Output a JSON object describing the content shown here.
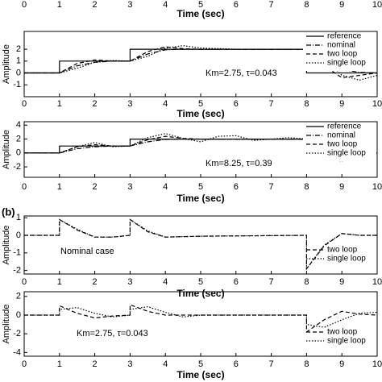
{
  "chart_data": [
    {
      "type": "axis",
      "xlim": [
        0,
        10
      ],
      "xticks": [
        0,
        1,
        2,
        3,
        4,
        5,
        6,
        7,
        8,
        9,
        10
      ],
      "xlabel": "Time (sec)"
    },
    {
      "type": "line",
      "ylabel": "Amplitude",
      "xlabel": "Time (sec)",
      "annotation": "Km=2.75, τ=0.043",
      "xlim": [
        0,
        10
      ],
      "xticks": [
        0,
        1,
        2,
        3,
        4,
        5,
        6,
        7,
        8,
        9,
        10
      ],
      "ylim": [
        -2,
        3.5
      ],
      "yticks": [
        -1,
        0,
        1,
        2
      ],
      "legend": "upper right",
      "series": [
        {
          "name": "reference",
          "color": "#000",
          "dash": "solid",
          "x": [
            0,
            1,
            1,
            3,
            3,
            8,
            8,
            10
          ],
          "values": [
            0,
            0,
            1,
            1,
            2,
            2,
            0,
            0
          ]
        },
        {
          "name": "nominal",
          "color": "#000",
          "dash": "dashdot",
          "x": [
            0,
            1,
            1.5,
            2,
            2.5,
            3,
            3.5,
            4,
            4.5,
            5,
            6,
            7,
            8,
            8.5,
            9,
            9.5,
            10
          ],
          "values": [
            0,
            0,
            0.6,
            0.9,
            1,
            1,
            1.6,
            1.95,
            2,
            2,
            2,
            2,
            2,
            1,
            0.3,
            0.05,
            0
          ]
        },
        {
          "name": "two loop",
          "color": "#000",
          "dash": "dashed",
          "x": [
            0,
            1,
            1.5,
            2,
            2.5,
            3,
            3.5,
            4,
            4.5,
            5,
            6,
            7,
            8,
            8.5,
            9,
            9.5,
            10
          ],
          "values": [
            0,
            0,
            0.8,
            1.1,
            1,
            1,
            1.8,
            2.2,
            2.05,
            2,
            2,
            2,
            2,
            0.6,
            -0.4,
            -0.2,
            0
          ]
        },
        {
          "name": "single loop",
          "color": "#000",
          "dash": "dotted",
          "x": [
            0,
            1,
            1.5,
            2,
            2.5,
            3,
            3.5,
            4,
            4.5,
            5,
            6,
            7,
            8,
            8.5,
            9,
            9.5,
            10
          ],
          "values": [
            0,
            0,
            0.4,
            0.9,
            1.05,
            1,
            1.4,
            2.1,
            2.3,
            2.1,
            2,
            2,
            2,
            1.3,
            -0.2,
            -0.6,
            -0.2
          ]
        }
      ]
    },
    {
      "type": "line",
      "ylabel": "Amplitude",
      "xlabel": "Time (sec)",
      "annotation": "Km=8.25, τ=0.39",
      "xlim": [
        0,
        10
      ],
      "xticks": [
        0,
        1,
        2,
        3,
        4,
        5,
        6,
        7,
        8,
        9,
        10
      ],
      "ylim": [
        -3.5,
        4.5
      ],
      "yticks": [
        -2,
        0,
        2,
        4
      ],
      "legend": "upper right",
      "series": [
        {
          "name": "reference",
          "color": "#000",
          "dash": "solid",
          "x": [
            0,
            1,
            1,
            3,
            3,
            8,
            8,
            10
          ],
          "values": [
            0,
            0,
            1,
            1,
            2,
            2,
            0,
            0
          ]
        },
        {
          "name": "nominal",
          "color": "#000",
          "dash": "dashdot",
          "x": [
            0,
            1,
            1.5,
            2,
            2.5,
            3,
            3.5,
            4,
            4.5,
            5,
            6,
            7,
            8,
            8.5,
            9,
            9.5,
            10
          ],
          "values": [
            0,
            0,
            0.6,
            0.9,
            1,
            1,
            1.6,
            1.95,
            2,
            2,
            2,
            2,
            2,
            1,
            0.3,
            0.05,
            0
          ]
        },
        {
          "name": "two loop",
          "color": "#000",
          "dash": "dashed",
          "x": [
            0,
            1,
            1.5,
            2,
            2.5,
            3,
            3.5,
            4,
            4.5,
            5,
            6,
            7,
            8,
            8.5,
            9,
            9.5,
            10
          ],
          "values": [
            0,
            0,
            0.9,
            1.2,
            1,
            1,
            1.9,
            2.4,
            2.1,
            2,
            2,
            2,
            2,
            0.4,
            -0.6,
            -0.2,
            0
          ]
        },
        {
          "name": "single loop",
          "color": "#000",
          "dash": "dotted",
          "x": [
            0,
            1,
            1.5,
            2,
            2.5,
            3,
            3.5,
            4,
            4.5,
            5,
            5.5,
            6,
            6.5,
            7,
            7.5,
            8,
            8.5,
            9,
            9.5,
            10
          ],
          "values": [
            0,
            0,
            0.9,
            1.5,
            0.9,
            1,
            2.2,
            2.8,
            2.1,
            1.6,
            2.4,
            2.5,
            1.8,
            2,
            2.2,
            2,
            -0.5,
            -1.2,
            0.5,
            1
          ]
        }
      ]
    },
    {
      "type": "line",
      "panel_label": "(b)",
      "ylabel": "Amplitude",
      "xlabel": "Time (sec)",
      "annotation": "Nominal case",
      "xlim": [
        0,
        10
      ],
      "xticks": [
        0,
        1,
        2,
        3,
        4,
        5,
        6,
        7,
        8,
        9,
        10
      ],
      "ylim": [
        -2.2,
        1.1
      ],
      "yticks": [
        -2,
        -1,
        0,
        1
      ],
      "legend": "lower right",
      "series": [
        {
          "name": "two loop",
          "color": "#000",
          "dash": "dashed",
          "x": [
            0,
            1,
            1,
            1.5,
            2,
            2.5,
            3,
            3,
            3.5,
            4,
            5,
            8,
            8,
            8.5,
            9,
            9.5,
            10
          ],
          "values": [
            0,
            0,
            0.9,
            0.3,
            -0.1,
            -0.1,
            0,
            0.9,
            0.2,
            -0.1,
            -0.05,
            0,
            -1.9,
            -0.6,
            0.1,
            0,
            0
          ]
        },
        {
          "name": "single loop",
          "color": "#000",
          "dash": "dotted",
          "x": [
            0,
            1,
            1,
            1.5,
            2,
            2.5,
            3,
            3,
            3.5,
            4,
            5,
            8,
            8,
            8.5,
            9,
            9.5,
            10
          ],
          "values": [
            0,
            0,
            0.9,
            0.35,
            -0.1,
            -0.1,
            0,
            0.9,
            0.25,
            -0.1,
            -0.05,
            0,
            -1.9,
            -0.55,
            0.1,
            0,
            0
          ]
        }
      ]
    },
    {
      "type": "line",
      "ylabel": "Amplitude",
      "xlabel": "Time (sec)",
      "annotation": "Km=2.75, τ=0.043",
      "xlim": [
        0,
        10
      ],
      "xticks": [
        0,
        1,
        2,
        3,
        4,
        5,
        6,
        7,
        8,
        9,
        10
      ],
      "ylim": [
        -4.4,
        2.5
      ],
      "yticks": [
        -4,
        -2,
        0,
        2
      ],
      "legend": "lower right",
      "series": [
        {
          "name": "two loop",
          "color": "#000",
          "dash": "dashed",
          "x": [
            0,
            1,
            1,
            1.5,
            2,
            2.5,
            3,
            3,
            3.5,
            4,
            5,
            8,
            8,
            8.5,
            9,
            9.5,
            10
          ],
          "values": [
            0,
            0,
            1,
            0.2,
            -0.3,
            -0.1,
            0,
            1.1,
            0.4,
            0,
            0,
            0,
            -1.8,
            -0.5,
            0.4,
            0.1,
            0
          ]
        },
        {
          "name": "single loop",
          "color": "#000",
          "dash": "dotted",
          "x": [
            0,
            1,
            1,
            1.5,
            2,
            2.5,
            3,
            3,
            3.5,
            4,
            4.5,
            5,
            8,
            8,
            8.5,
            9,
            9.5,
            10
          ],
          "values": [
            0,
            0,
            0.6,
            0.8,
            0.2,
            -0.2,
            0,
            0.6,
            0.9,
            0.3,
            -0.2,
            0,
            0,
            -1,
            -1.3,
            -0.5,
            0.2,
            0.3
          ]
        }
      ]
    }
  ]
}
